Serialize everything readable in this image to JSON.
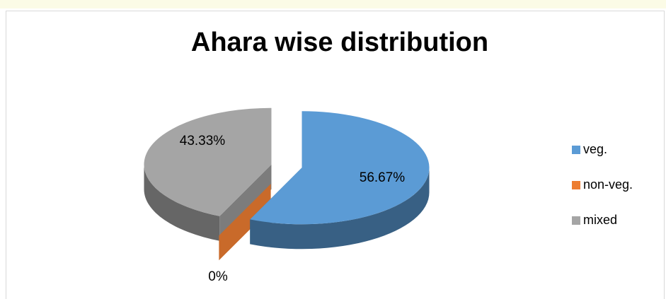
{
  "chart_data": {
    "type": "pie3d",
    "title": "Ahara wise distribution",
    "categories": [
      "veg.",
      "non-veg.",
      "mixed"
    ],
    "values": [
      56.67,
      0,
      43.33
    ],
    "value_labels": [
      "56.67%",
      "0%",
      "43.33%"
    ],
    "colors": [
      "#5b9bd5",
      "#ed7d31",
      "#a5a5a5"
    ],
    "legend": "right"
  }
}
